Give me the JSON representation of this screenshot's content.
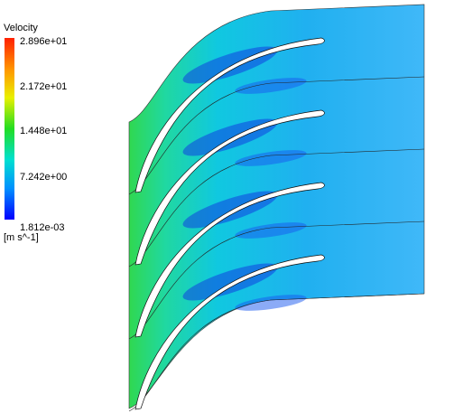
{
  "legend": {
    "title": "Velocity",
    "labels": [
      "2.896e+01",
      "2.172e+01",
      "1.448e+01",
      "7.242e+00",
      "1.812e-03"
    ],
    "unit": "[m s^-1]"
  }
}
